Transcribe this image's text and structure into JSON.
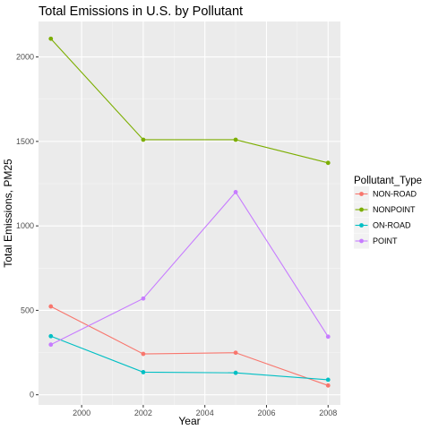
{
  "chart_data": {
    "type": "line",
    "title": "Total Emissions in U.S. by Pollutant",
    "xlabel": "Year",
    "ylabel": "Total Emissions, PM25",
    "x": [
      1999,
      2002,
      2005,
      2008
    ],
    "xlim": [
      1998.6,
      2008.4
    ],
    "ylim": [
      -60,
      2210
    ],
    "x_ticks": [
      2000,
      2002,
      2004,
      2006,
      2008
    ],
    "y_ticks": [
      0,
      500,
      1000,
      1500,
      2000
    ],
    "x_tick_labels": [
      "2000",
      "2002",
      "2004",
      "2006",
      "2008"
    ],
    "y_tick_labels": [
      "0",
      "500",
      "1000",
      "1500",
      "2000"
    ],
    "grid": true,
    "legend": {
      "title": "Pollutant_Type",
      "placement": "right"
    },
    "series": [
      {
        "name": "NON-ROAD",
        "color": "#F8766D",
        "values": [
          523,
          242,
          249,
          55
        ]
      },
      {
        "name": "NONPOINT",
        "color": "#7CAE00",
        "values": [
          2108,
          1510,
          1510,
          1373
        ]
      },
      {
        "name": "ON-ROAD",
        "color": "#00BFC4",
        "values": [
          347,
          134,
          130,
          89
        ]
      },
      {
        "name": "POINT",
        "color": "#C77CFF",
        "values": [
          297,
          570,
          1200,
          344
        ]
      }
    ]
  }
}
